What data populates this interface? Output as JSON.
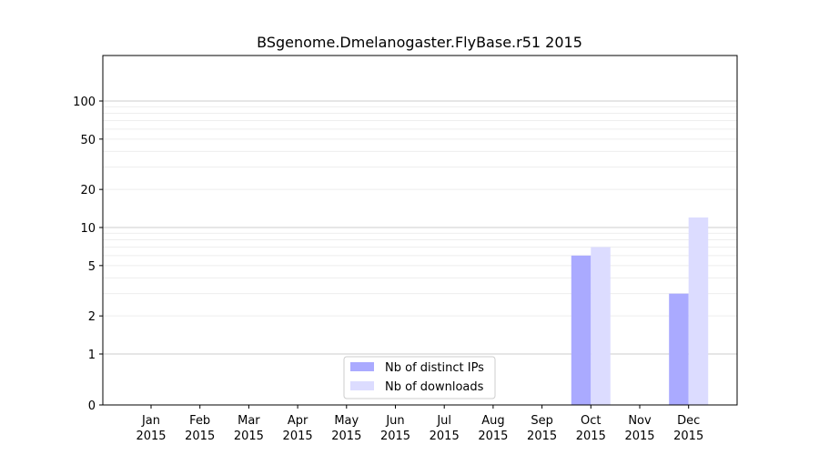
{
  "chart_data": {
    "type": "bar",
    "title": "BSgenome.Dmelanogaster.FlyBase.r51 2015",
    "xlabel": "",
    "ylabel": "",
    "yscale": "symlog",
    "ylim": [
      0,
      120
    ],
    "grid": "horizontal",
    "legend_position": "bottom-center",
    "categories": [
      {
        "month": "Jan",
        "year": "2015"
      },
      {
        "month": "Feb",
        "year": "2015"
      },
      {
        "month": "Mar",
        "year": "2015"
      },
      {
        "month": "Apr",
        "year": "2015"
      },
      {
        "month": "May",
        "year": "2015"
      },
      {
        "month": "Jun",
        "year": "2015"
      },
      {
        "month": "Jul",
        "year": "2015"
      },
      {
        "month": "Aug",
        "year": "2015"
      },
      {
        "month": "Sep",
        "year": "2015"
      },
      {
        "month": "Oct",
        "year": "2015"
      },
      {
        "month": "Nov",
        "year": "2015"
      },
      {
        "month": "Dec",
        "year": "2015"
      }
    ],
    "series": [
      {
        "name": "Nb of distinct IPs",
        "color": "#aaaaff",
        "values": [
          0,
          0,
          0,
          0,
          0,
          0,
          0,
          0,
          0,
          6,
          0,
          3
        ]
      },
      {
        "name": "Nb of downloads",
        "color": "#dcdcff",
        "values": [
          0,
          0,
          0,
          0,
          0,
          0,
          0,
          0,
          0,
          7,
          0,
          12
        ]
      }
    ],
    "yticks": [
      {
        "value": 0,
        "label": "0"
      },
      {
        "value": 1,
        "label": "1"
      },
      {
        "value": 2,
        "label": "2"
      },
      {
        "value": 5,
        "label": "5"
      },
      {
        "value": 10,
        "label": "10"
      },
      {
        "value": 20,
        "label": "20"
      },
      {
        "value": 50,
        "label": "50"
      },
      {
        "value": 100,
        "label": "100"
      }
    ],
    "major_gridlines": [
      1,
      10,
      100
    ],
    "minor_gridlines": [
      2,
      3,
      4,
      5,
      6,
      7,
      8,
      9,
      20,
      30,
      40,
      50,
      60,
      70,
      80,
      90
    ]
  }
}
